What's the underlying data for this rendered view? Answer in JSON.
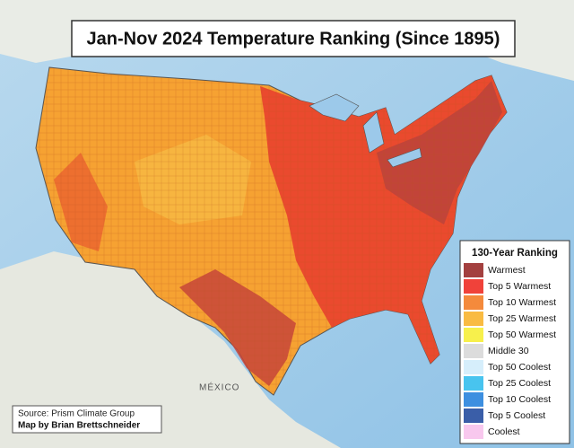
{
  "title": "Jan-Nov 2024 Temperature Ranking (Since 1895)",
  "legend": {
    "title": "130-Year Ranking",
    "items": [
      {
        "label": "Warmest",
        "color": "#a3403f"
      },
      {
        "label": "Top 5 Warmest",
        "color": "#f0423a"
      },
      {
        "label": "Top 10 Warmest",
        "color": "#f48a3c"
      },
      {
        "label": "Top 25 Warmest",
        "color": "#f9bb42"
      },
      {
        "label": "Top 50 Warmest",
        "color": "#f7f04c"
      },
      {
        "label": "Middle 30",
        "color": "#dcdcdc"
      },
      {
        "label": "Top 50 Coolest",
        "color": "#d6eefb"
      },
      {
        "label": "Top 25 Coolest",
        "color": "#48c4ef"
      },
      {
        "label": "Top 10 Coolest",
        "color": "#3d8fe0"
      },
      {
        "label": "Top 5 Coolest",
        "color": "#3a5ea8"
      },
      {
        "label": "Coolest",
        "color": "#f8c8ee"
      }
    ]
  },
  "source": "Source: Prism Climate Group",
  "credit": "Map by Brian Brettschneider",
  "map_labels": [
    "MÉXICO"
  ]
}
